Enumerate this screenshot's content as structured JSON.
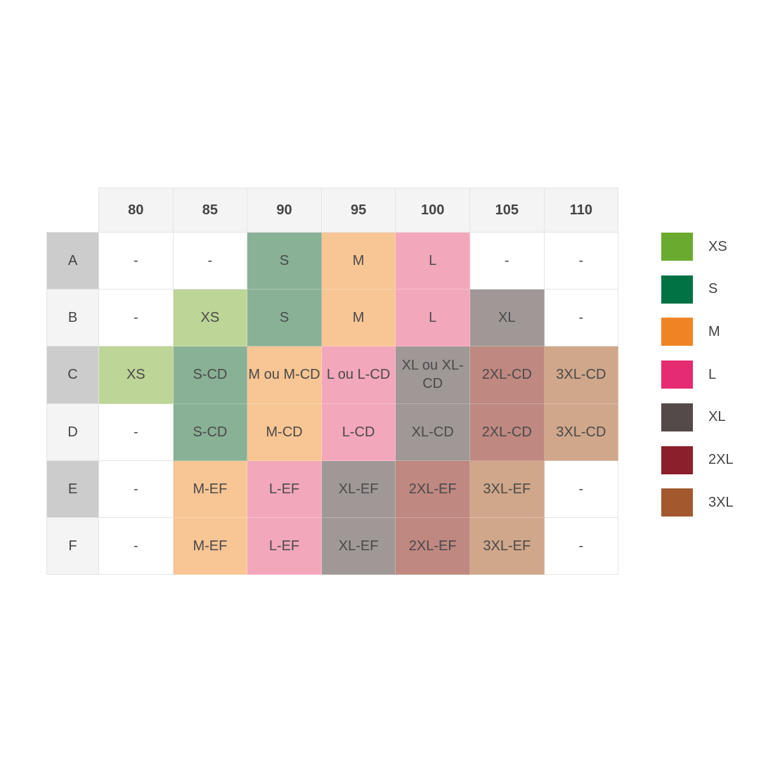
{
  "chart_data": {
    "type": "table",
    "columns": [
      "80",
      "85",
      "90",
      "95",
      "100",
      "105",
      "110"
    ],
    "rows": [
      {
        "label": "A",
        "header_color": "#cccccc",
        "cells": [
          {
            "text": "-",
            "size": null
          },
          {
            "text": "-",
            "size": null
          },
          {
            "text": "S",
            "size": "S"
          },
          {
            "text": "M",
            "size": "M"
          },
          {
            "text": "L",
            "size": "L"
          },
          {
            "text": "-",
            "size": null
          },
          {
            "text": "-",
            "size": null
          }
        ]
      },
      {
        "label": "B",
        "header_color": "#f4f4f4",
        "cells": [
          {
            "text": "-",
            "size": null
          },
          {
            "text": "XS",
            "size": "XS"
          },
          {
            "text": "S",
            "size": "S"
          },
          {
            "text": "M",
            "size": "M"
          },
          {
            "text": "L",
            "size": "L"
          },
          {
            "text": "XL",
            "size": "XL"
          },
          {
            "text": "-",
            "size": null
          }
        ]
      },
      {
        "label": "C",
        "header_color": "#cccccc",
        "cells": [
          {
            "text": "XS",
            "size": "XS"
          },
          {
            "text": "S-CD",
            "size": "S"
          },
          {
            "text": "M ou M-CD",
            "size": "M"
          },
          {
            "text": "L ou L-CD",
            "size": "L"
          },
          {
            "text": "XL ou XL-CD",
            "size": "XL"
          },
          {
            "text": "2XL-CD",
            "size": "2XL"
          },
          {
            "text": "3XL-CD",
            "size": "3XL"
          }
        ]
      },
      {
        "label": "D",
        "header_color": "#f4f4f4",
        "cells": [
          {
            "text": "-",
            "size": null
          },
          {
            "text": "S-CD",
            "size": "S"
          },
          {
            "text": "M-CD",
            "size": "M"
          },
          {
            "text": "L-CD",
            "size": "L"
          },
          {
            "text": "XL-CD",
            "size": "XL"
          },
          {
            "text": "2XL-CD",
            "size": "2XL"
          },
          {
            "text": "3XL-CD",
            "size": "3XL"
          }
        ]
      },
      {
        "label": "E",
        "header_color": "#cccccc",
        "cells": [
          {
            "text": "-",
            "size": null
          },
          {
            "text": "M-EF",
            "size": "M"
          },
          {
            "text": "L-EF",
            "size": "L"
          },
          {
            "text": "XL-EF",
            "size": "XL"
          },
          {
            "text": "2XL-EF",
            "size": "2XL"
          },
          {
            "text": "3XL-EF",
            "size": "3XL"
          },
          {
            "text": "-",
            "size": null
          }
        ]
      },
      {
        "label": "F",
        "header_color": "#f4f4f4",
        "cells": [
          {
            "text": "-",
            "size": null
          },
          {
            "text": "M-EF",
            "size": "M"
          },
          {
            "text": "L-EF",
            "size": "L"
          },
          {
            "text": "XL-EF",
            "size": "XL"
          },
          {
            "text": "2XL-EF",
            "size": "2XL"
          },
          {
            "text": "3XL-EF",
            "size": "3XL"
          },
          {
            "text": "-",
            "size": null
          }
        ]
      }
    ],
    "cell_colors": {
      "XS": "#bdd597",
      "S": "#89b195",
      "M": "#f8c594",
      "L": "#f3a7bb",
      "XL": "#a09896",
      "2XL": "#bf8880",
      "3XL": "#d0a78a"
    },
    "legend": [
      {
        "label": "XS",
        "color": "#6aab2f"
      },
      {
        "label": "S",
        "color": "#007244"
      },
      {
        "label": "M",
        "color": "#f08424"
      },
      {
        "label": "L",
        "color": "#e52b72"
      },
      {
        "label": "XL",
        "color": "#534a49"
      },
      {
        "label": "2XL",
        "color": "#8b1f2b"
      },
      {
        "label": "3XL",
        "color": "#a3592e"
      }
    ],
    "legend_placement": "right"
  }
}
